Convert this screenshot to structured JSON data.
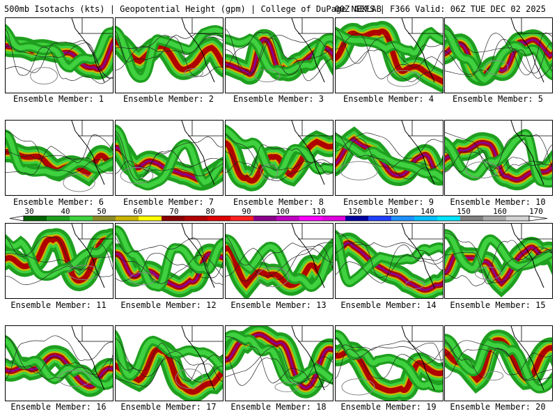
{
  "header": {
    "title_left": "500mb Isotachs (kts) | Geopotential Height (gpm) | College of DuPage NEXLAB",
    "title_right": "00Z GEFS | F366 Valid: 06Z TUE DEC 02 2025"
  },
  "members": [
    {
      "label": "Ensemble Member: 1"
    },
    {
      "label": "Ensemble Member: 2"
    },
    {
      "label": "Ensemble Member: 3"
    },
    {
      "label": "Ensemble Member: 4"
    },
    {
      "label": "Ensemble Member: 5"
    },
    {
      "label": "Ensemble Member: 6"
    },
    {
      "label": "Ensemble Member: 7"
    },
    {
      "label": "Ensemble Member: 8"
    },
    {
      "label": "Ensemble Member: 9"
    },
    {
      "label": "Ensemble Member: 10"
    },
    {
      "label": "Ensemble Member: 11"
    },
    {
      "label": "Ensemble Member: 12"
    },
    {
      "label": "Ensemble Member: 13"
    },
    {
      "label": "Ensemble Member: 14"
    },
    {
      "label": "Ensemble Member: 15"
    },
    {
      "label": "Ensemble Member: 16"
    },
    {
      "label": "Ensemble Member: 17"
    },
    {
      "label": "Ensemble Member: 18"
    },
    {
      "label": "Ensemble Member: 19"
    },
    {
      "label": "Ensemble Member: 20"
    }
  ],
  "colorbar": {
    "labels": [
      "30",
      "40",
      "50",
      "60",
      "70",
      "80",
      "90",
      "100",
      "110",
      "120",
      "130",
      "140",
      "150",
      "160",
      "170"
    ],
    "colors": [
      "#006400",
      "#1f9f1f",
      "#3fd13f",
      "#8b8b2a",
      "#c8b400",
      "#ffff00",
      "#8b0000",
      "#b00000",
      "#e00000",
      "#ff2020",
      "#8b008b",
      "#c000c0",
      "#ff00ff",
      "#e000e0",
      "#0000a0",
      "#2040ff",
      "#1e90ff",
      "#00bfff",
      "#00e5ff",
      "#808080",
      "#a9a9a9",
      "#d3d3d3"
    ]
  }
}
